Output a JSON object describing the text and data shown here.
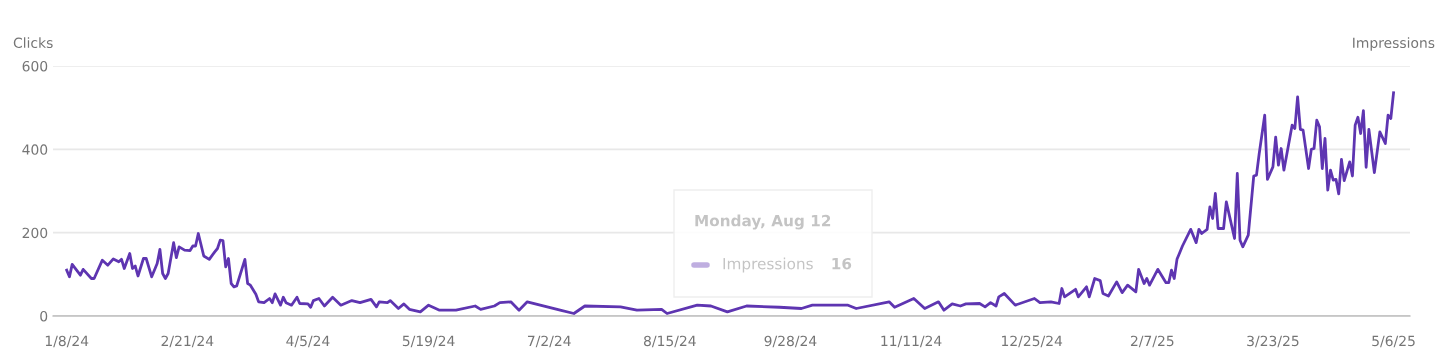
{
  "chart_data": {
    "type": "line",
    "ylabel": "Clicks",
    "y2label": "Impressions",
    "xlim": [
      "2024-01-03",
      "2025-05-12"
    ],
    "ylim": [
      0,
      600
    ],
    "yticks": [
      0,
      200,
      400,
      600
    ],
    "xticks": [
      {
        "value": "2024-01-08",
        "label": "1/8/24"
      },
      {
        "value": "2024-02-21",
        "label": "2/21/24"
      },
      {
        "value": "2024-04-05",
        "label": "4/5/24"
      },
      {
        "value": "2024-05-19",
        "label": "5/19/24"
      },
      {
        "value": "2024-07-02",
        "label": "7/2/24"
      },
      {
        "value": "2024-08-15",
        "label": "8/15/24"
      },
      {
        "value": "2024-09-28",
        "label": "9/28/24"
      },
      {
        "value": "2024-11-11",
        "label": "11/11/24"
      },
      {
        "value": "2024-12-25",
        "label": "12/25/24"
      },
      {
        "value": "2025-02-07",
        "label": "2/7/25"
      },
      {
        "value": "2025-03-23",
        "label": "3/23/25"
      },
      {
        "value": "2025-05-06",
        "label": "5/6/25"
      }
    ],
    "grid": "y",
    "legend": "center",
    "marker": "none",
    "line_style": "solid",
    "annotations": [
      "Monday, Aug 12",
      "16"
    ],
    "series": [
      {
        "name": "Impressions",
        "color": "#5e35b1",
        "x": [
          "2024-01-08",
          "2024-01-09",
          "2024-01-10",
          "2024-01-13",
          "2024-01-14",
          "2024-01-17",
          "2024-01-18",
          "2024-01-21",
          "2024-01-23",
          "2024-01-25",
          "2024-01-27",
          "2024-01-28",
          "2024-01-29",
          "2024-01-31",
          "2024-02-01",
          "2024-02-02",
          "2024-02-03",
          "2024-02-05",
          "2024-02-06",
          "2024-02-08",
          "2024-02-10",
          "2024-02-11",
          "2024-02-12",
          "2024-02-13",
          "2024-02-14",
          "2024-02-16",
          "2024-02-17",
          "2024-02-18",
          "2024-02-20",
          "2024-02-22",
          "2024-02-23",
          "2024-02-24",
          "2024-02-25",
          "2024-02-27",
          "2024-02-29",
          "2024-03-02",
          "2024-03-03",
          "2024-03-04",
          "2024-03-05",
          "2024-03-06",
          "2024-03-07",
          "2024-03-08",
          "2024-03-09",
          "2024-03-10",
          "2024-03-13",
          "2024-03-14",
          "2024-03-15",
          "2024-03-17",
          "2024-03-18",
          "2024-03-20",
          "2024-03-22",
          "2024-03-23",
          "2024-03-24",
          "2024-03-26",
          "2024-03-27",
          "2024-03-28",
          "2024-03-30",
          "2024-04-01",
          "2024-04-02",
          "2024-04-05",
          "2024-04-06",
          "2024-04-07",
          "2024-04-09",
          "2024-04-11",
          "2024-04-14",
          "2024-04-17",
          "2024-04-21",
          "2024-04-24",
          "2024-04-28",
          "2024-04-30",
          "2024-05-01",
          "2024-05-04",
          "2024-05-05",
          "2024-05-08",
          "2024-05-10",
          "2024-05-12",
          "2024-05-16",
          "2024-05-19",
          "2024-05-23",
          "2024-05-29",
          "2024-06-05",
          "2024-06-07",
          "2024-06-12",
          "2024-06-14",
          "2024-06-18",
          "2024-06-21",
          "2024-06-24",
          "2024-07-06",
          "2024-07-11",
          "2024-07-15",
          "2024-07-28",
          "2024-08-03",
          "2024-08-12",
          "2024-08-14",
          "2024-08-25",
          "2024-08-30",
          "2024-09-05",
          "2024-09-12",
          "2024-09-24",
          "2024-10-02",
          "2024-10-06",
          "2024-10-19",
          "2024-10-22",
          "2024-11-03",
          "2024-11-05",
          "2024-11-12",
          "2024-11-16",
          "2024-11-21",
          "2024-11-23",
          "2024-11-26",
          "2024-11-29",
          "2024-12-01",
          "2024-12-06",
          "2024-12-08",
          "2024-12-10",
          "2024-12-12",
          "2024-12-13",
          "2024-12-15",
          "2024-12-19",
          "2024-12-26",
          "2024-12-28",
          "2025-01-01",
          "2025-01-04",
          "2025-01-05",
          "2025-01-06",
          "2025-01-10",
          "2025-01-11",
          "2025-01-14",
          "2025-01-15",
          "2025-01-17",
          "2025-01-19",
          "2025-01-20",
          "2025-01-22",
          "2025-01-25",
          "2025-01-27",
          "2025-01-29",
          "2025-02-01",
          "2025-02-02",
          "2025-02-04",
          "2025-02-05",
          "2025-02-06",
          "2025-02-09",
          "2025-02-12",
          "2025-02-13",
          "2025-02-14",
          "2025-02-15",
          "2025-02-16",
          "2025-02-18",
          "2025-02-21",
          "2025-02-23",
          "2025-02-24",
          "2025-02-25",
          "2025-02-27",
          "2025-02-28",
          "2025-03-01",
          "2025-03-02",
          "2025-03-03",
          "2025-03-05",
          "2025-03-06",
          "2025-03-09",
          "2025-03-10",
          "2025-03-11",
          "2025-03-12",
          "2025-03-14",
          "2025-03-16",
          "2025-03-17",
          "2025-03-18",
          "2025-03-20",
          "2025-03-21",
          "2025-03-23",
          "2025-03-24",
          "2025-03-25",
          "2025-03-26",
          "2025-03-27",
          "2025-03-30",
          "2025-03-31",
          "2025-04-01",
          "2025-04-02",
          "2025-04-03",
          "2025-04-05",
          "2025-04-06",
          "2025-04-07",
          "2025-04-08",
          "2025-04-09",
          "2025-04-10",
          "2025-04-11",
          "2025-04-12",
          "2025-04-13",
          "2025-04-14",
          "2025-04-15",
          "2025-04-16",
          "2025-04-17",
          "2025-04-18",
          "2025-04-20",
          "2025-04-21",
          "2025-04-22",
          "2025-04-23",
          "2025-04-24",
          "2025-04-25",
          "2025-04-26",
          "2025-04-27",
          "2025-04-29",
          "2025-05-01",
          "2025-05-03",
          "2025-05-04",
          "2025-05-05",
          "2025-05-06"
        ],
        "values": [
          110,
          94,
          124,
          98,
          112,
          90,
          90,
          134,
          122,
          137,
          130,
          136,
          114,
          150,
          114,
          120,
          96,
          138,
          138,
          94,
          126,
          160,
          102,
          90,
          102,
          176,
          140,
          166,
          158,
          157,
          168,
          168,
          198,
          144,
          136,
          154,
          162,
          182,
          181,
          118,
          138,
          78,
          70,
          72,
          136,
          78,
          74,
          52,
          34,
          32,
          42,
          32,
          53,
          26,
          45,
          32,
          26,
          45,
          30,
          29,
          21,
          37,
          42,
          24,
          45,
          26,
          37,
          32,
          40,
          22,
          34,
          32,
          37,
          18,
          29,
          16,
          10,
          26,
          14,
          14,
          24,
          16,
          24,
          32,
          34,
          14,
          34,
          14,
          6,
          24,
          22,
          14,
          16,
          6,
          26,
          24,
          10,
          24,
          21,
          18,
          26,
          26,
          18,
          34,
          21,
          42,
          18,
          34,
          14,
          29,
          24,
          29,
          30,
          22,
          32,
          24,
          46,
          54,
          26,
          42,
          32,
          34,
          30,
          66,
          46,
          64,
          46,
          70,
          46,
          90,
          85,
          54,
          48,
          82,
          56,
          74,
          58,
          112,
          78,
          90,
          74,
          112,
          80,
          80,
          110,
          90,
          136,
          168,
          208,
          176,
          208,
          198,
          208,
          262,
          234,
          294,
          210,
          210,
          274,
          186,
          342,
          182,
          166,
          194,
          336,
          338,
          390,
          482,
          328,
          358,
          429,
          362,
          402,
          350,
          458,
          450,
          526,
          448,
          446,
          354,
          400,
          402,
          470,
          454,
          354,
          426,
          302,
          350,
          326,
          328,
          293,
          376,
          325,
          370,
          336,
          458,
          477,
          438,
          493,
          357,
          448,
          344,
          442,
          414,
          482,
          474,
          536
        ]
      }
    ]
  }
}
